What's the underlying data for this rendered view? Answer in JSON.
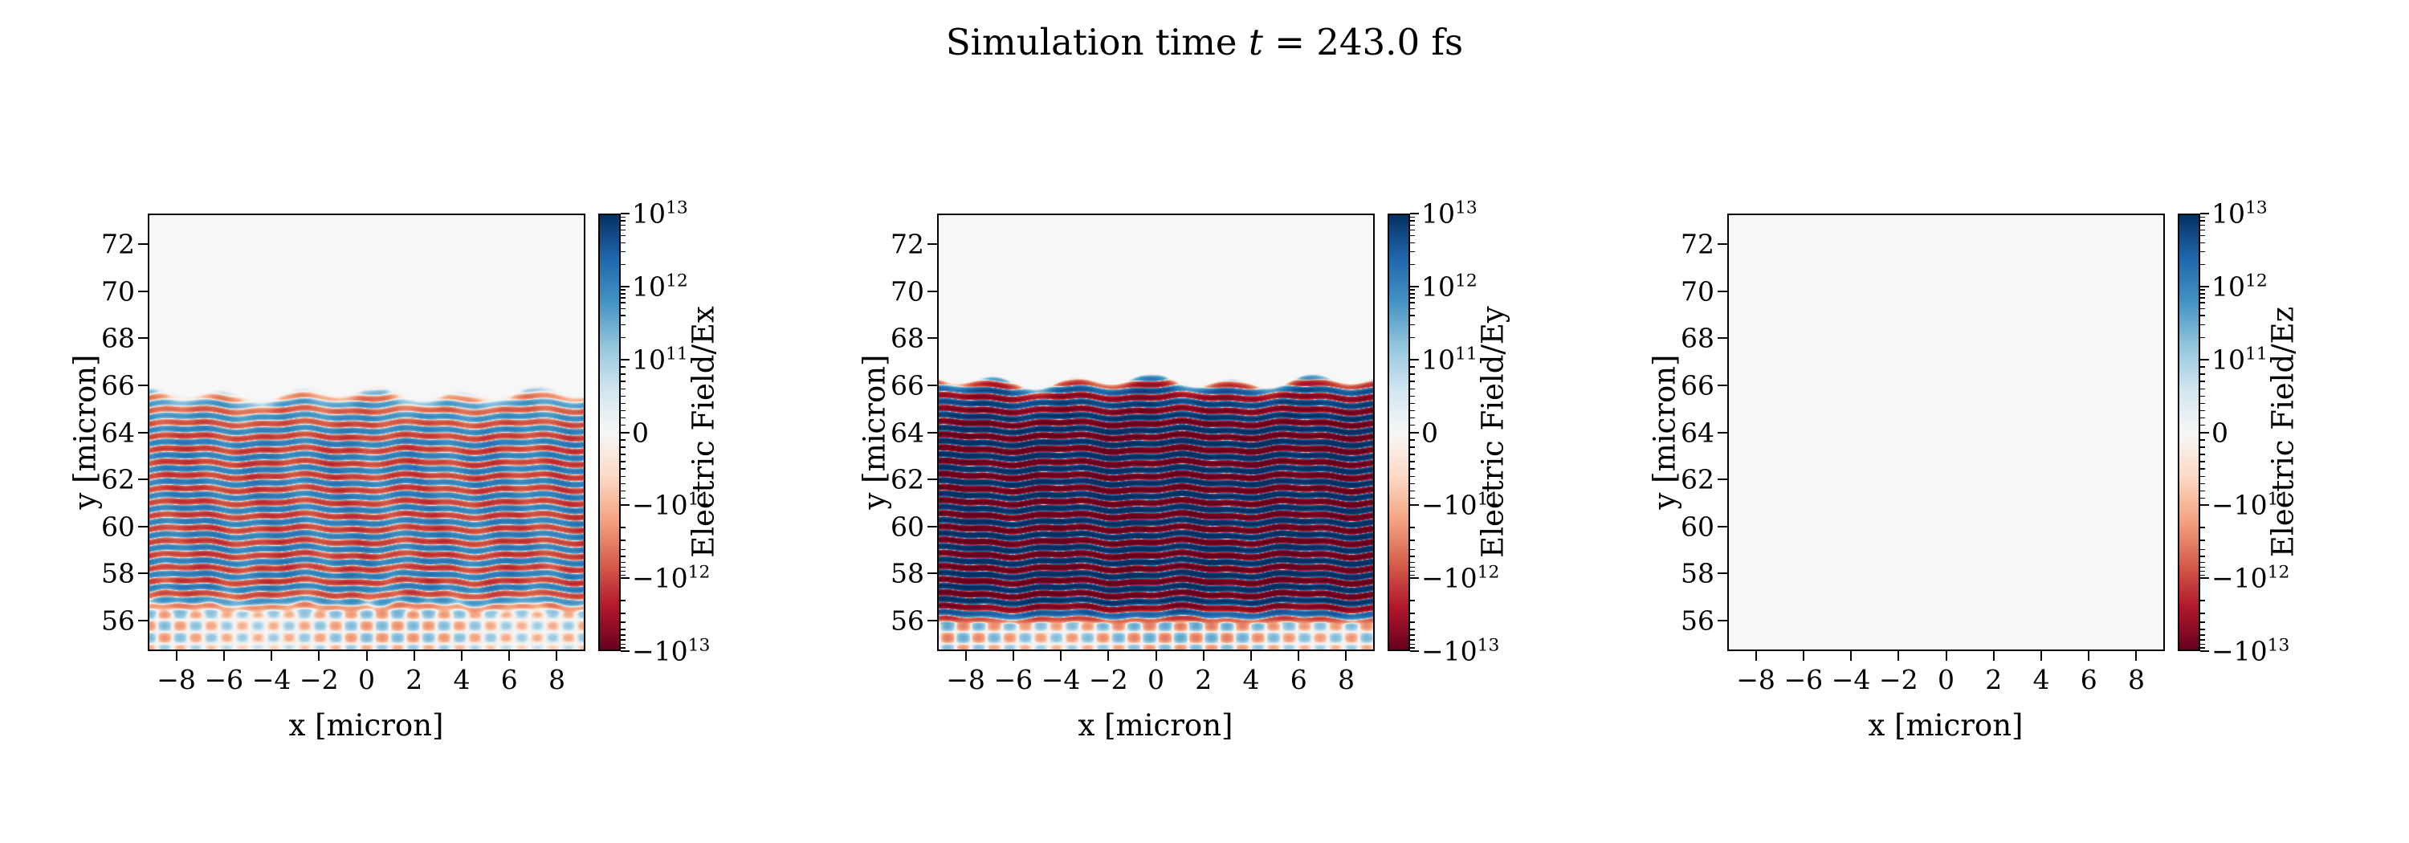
{
  "title": {
    "prefix": "Simulation time ",
    "variable": "t",
    "suffix": " = 243.0 fs"
  },
  "figure": {
    "background": "#ffffff",
    "text_color": "#000000"
  },
  "chart_data": [
    {
      "type": "heatmap",
      "component": "Ex",
      "xlabel": "x [micron]",
      "ylabel": "y [micron]",
      "xlim": [
        -9.2,
        9.2
      ],
      "ylim": [
        54.7,
        73.3
      ],
      "xticks": [
        -8,
        -6,
        -4,
        -2,
        0,
        2,
        4,
        6,
        8
      ],
      "xtick_labels": [
        "−8",
        "−6",
        "−4",
        "−2",
        "0",
        "2",
        "4",
        "6",
        "8"
      ],
      "yticks": [
        56,
        58,
        60,
        62,
        64,
        66,
        68,
        70,
        72
      ],
      "ytick_labels": [
        "56",
        "58",
        "60",
        "62",
        "64",
        "66",
        "68",
        "70",
        "72"
      ],
      "grid": false,
      "colorbar": {
        "label": "Electric Field/Ex",
        "scale": "symlog",
        "linthresh": 100000000000.0,
        "vmin": -10000000000000.0,
        "vmax": 10000000000000.0,
        "colormap": "RdBu",
        "ticks": [
          10000000000000.0,
          1000000000000.0,
          100000000000.0,
          0,
          -100000000000.0,
          -1000000000000.0,
          -10000000000000.0
        ],
        "tick_labels": [
          {
            "mant": "10",
            "exp": "13"
          },
          {
            "mant": "10",
            "exp": "12"
          },
          {
            "mant": "10",
            "exp": "11"
          },
          {
            "mant": "0"
          },
          {
            "mant": "−10",
            "exp": "11"
          },
          {
            "mant": "−10",
            "exp": "12"
          },
          {
            "mant": "−10",
            "exp": "13"
          }
        ]
      },
      "field": {
        "pattern": "standing_wave_interference",
        "peak_amplitude": 2000000000000.0,
        "stripe_period_micron": 0.56,
        "stripe_region_y": [
          56.8,
          65.7
        ],
        "cross_wave_amplitude": 250000000000.0,
        "cross_region_y": [
          54.7,
          59.4
        ],
        "x_modulation": 0.45,
        "seed_phase": 0.0
      }
    },
    {
      "type": "heatmap",
      "component": "Ey",
      "xlabel": "x [micron]",
      "ylabel": "y [micron]",
      "xlim": [
        -9.2,
        9.2
      ],
      "ylim": [
        54.7,
        73.3
      ],
      "xticks": [
        -8,
        -6,
        -4,
        -2,
        0,
        2,
        4,
        6,
        8
      ],
      "xtick_labels": [
        "−8",
        "−6",
        "−4",
        "−2",
        "0",
        "2",
        "4",
        "6",
        "8"
      ],
      "yticks": [
        56,
        58,
        60,
        62,
        64,
        66,
        68,
        70,
        72
      ],
      "ytick_labels": [
        "56",
        "58",
        "60",
        "62",
        "64",
        "66",
        "68",
        "70",
        "72"
      ],
      "grid": false,
      "colorbar": {
        "label": "Electric Field/Ey",
        "scale": "symlog",
        "linthresh": 100000000000.0,
        "vmin": -10000000000000.0,
        "vmax": 10000000000000.0,
        "colormap": "RdBu",
        "ticks": [
          10000000000000.0,
          1000000000000.0,
          100000000000.0,
          0,
          -100000000000.0,
          -1000000000000.0,
          -10000000000000.0
        ],
        "tick_labels": [
          {
            "mant": "10",
            "exp": "13"
          },
          {
            "mant": "10",
            "exp": "12"
          },
          {
            "mant": "10",
            "exp": "11"
          },
          {
            "mant": "0"
          },
          {
            "mant": "−10",
            "exp": "11"
          },
          {
            "mant": "−10",
            "exp": "12"
          },
          {
            "mant": "−10",
            "exp": "13"
          }
        ]
      },
      "field": {
        "pattern": "standing_wave_interference",
        "peak_amplitude": 15000000000000.0,
        "stripe_period_micron": 0.56,
        "stripe_region_y": [
          56.4,
          66.2
        ],
        "cross_wave_amplitude": 400000000000.0,
        "cross_region_y": [
          54.7,
          59.2
        ],
        "x_modulation": 0.25,
        "seed_phase": 1.3
      }
    },
    {
      "type": "heatmap",
      "component": "Ez",
      "xlabel": "x [micron]",
      "ylabel": "y [micron]",
      "xlim": [
        -9.2,
        9.2
      ],
      "ylim": [
        54.7,
        73.3
      ],
      "xticks": [
        -8,
        -6,
        -4,
        -2,
        0,
        2,
        4,
        6,
        8
      ],
      "xtick_labels": [
        "−8",
        "−6",
        "−4",
        "−2",
        "0",
        "2",
        "4",
        "6",
        "8"
      ],
      "yticks": [
        56,
        58,
        60,
        62,
        64,
        66,
        68,
        70,
        72
      ],
      "ytick_labels": [
        "56",
        "58",
        "60",
        "62",
        "64",
        "66",
        "68",
        "70",
        "72"
      ],
      "grid": false,
      "colorbar": {
        "label": "Electric Field/Ez",
        "scale": "symlog",
        "linthresh": 100000000000.0,
        "vmin": -10000000000000.0,
        "vmax": 10000000000000.0,
        "colormap": "RdBu",
        "ticks": [
          10000000000000.0,
          1000000000000.0,
          100000000000.0,
          0,
          -100000000000.0,
          -1000000000000.0,
          -10000000000000.0
        ],
        "tick_labels": [
          {
            "mant": "10",
            "exp": "13"
          },
          {
            "mant": "10",
            "exp": "12"
          },
          {
            "mant": "10",
            "exp": "11"
          },
          {
            "mant": "0"
          },
          {
            "mant": "−10",
            "exp": "11"
          },
          {
            "mant": "−10",
            "exp": "12"
          },
          {
            "mant": "−10",
            "exp": "13"
          }
        ]
      },
      "field": {
        "pattern": "zero_field",
        "peak_amplitude": 0,
        "stripe_period_micron": 0.56,
        "stripe_region_y": [
          56.8,
          65.7
        ],
        "cross_wave_amplitude": 0,
        "cross_region_y": [
          54.7,
          59.4
        ],
        "x_modulation": 0,
        "seed_phase": 0
      }
    }
  ]
}
